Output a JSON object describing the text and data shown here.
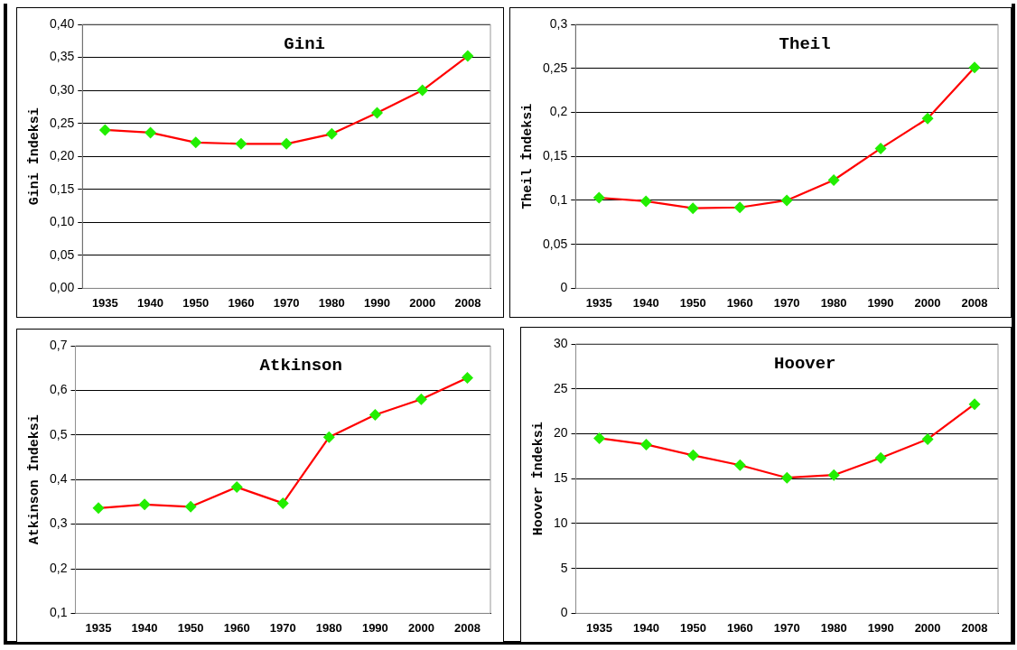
{
  "chart_data": [
    {
      "type": "line",
      "title": "Gini",
      "ylabel": "Gini İndeksi",
      "categories": [
        "1935",
        "1940",
        "1950",
        "1960",
        "1970",
        "1980",
        "1990",
        "2000",
        "2008"
      ],
      "series": [
        {
          "color": "#ff0000",
          "values": [
            0.24,
            0.236,
            0.221,
            0.219,
            0.219,
            0.234,
            0.266,
            0.3,
            0.352
          ]
        }
      ],
      "ylim": [
        0,
        0.4
      ],
      "yticks": [
        {
          "value": 0,
          "label": "0,00"
        },
        {
          "value": 0.05,
          "label": "0,05"
        },
        {
          "value": 0.1,
          "label": "0,10"
        },
        {
          "value": 0.15,
          "label": "0,15"
        },
        {
          "value": 0.2,
          "label": "0,20"
        },
        {
          "value": 0.25,
          "label": "0,25"
        },
        {
          "value": 0.3,
          "label": "0,30"
        },
        {
          "value": 0.35,
          "label": "0,35"
        },
        {
          "value": 0.4,
          "label": "0,40"
        }
      ],
      "grid": "y",
      "legend": false,
      "marker": "diamond",
      "line_style": "solid"
    },
    {
      "type": "line",
      "title": "Theil",
      "ylabel": "Theil İndeksi",
      "categories": [
        "1935",
        "1940",
        "1950",
        "1960",
        "1970",
        "1980",
        "1990",
        "2000",
        "2008"
      ],
      "series": [
        {
          "color": "#ff0000",
          "values": [
            0.103,
            0.099,
            0.091,
            0.092,
            0.1,
            0.123,
            0.159,
            0.193,
            0.251
          ]
        }
      ],
      "ylim": [
        0,
        0.3
      ],
      "yticks": [
        0,
        {
          "value": 0.05,
          "label": "0,05"
        },
        {
          "value": 0.1,
          "label": "0,1"
        },
        {
          "value": 0.15,
          "label": "0,15"
        },
        {
          "value": 0.2,
          "label": "0,2"
        },
        {
          "value": 0.25,
          "label": "0,25"
        },
        {
          "value": 0.3,
          "label": "0,3"
        }
      ],
      "grid": "y",
      "legend": false,
      "marker": "diamond",
      "line_style": "solid"
    },
    {
      "type": "line",
      "title": "Atkinson",
      "ylabel": "Atkinson İndeksi",
      "categories": [
        "1935",
        "1940",
        "1950",
        "1960",
        "1970",
        "1980",
        "1990",
        "2000",
        "2008"
      ],
      "series": [
        {
          "color": "#ff0000",
          "values": [
            0.336,
            0.344,
            0.339,
            0.383,
            0.347,
            0.495,
            0.545,
            0.58,
            0.628
          ]
        }
      ],
      "ylim": [
        0.1,
        0.7
      ],
      "yticks": [
        {
          "value": 0.1,
          "label": "0,1"
        },
        {
          "value": 0.2,
          "label": "0,2"
        },
        {
          "value": 0.3,
          "label": "0,3"
        },
        {
          "value": 0.4,
          "label": "0,4"
        },
        {
          "value": 0.5,
          "label": "0,5"
        },
        {
          "value": 0.6,
          "label": "0,6"
        },
        {
          "value": 0.7,
          "label": "0,7"
        }
      ],
      "grid": "y",
      "legend": false,
      "marker": "diamond",
      "line_style": "solid"
    },
    {
      "type": "line",
      "title": "Hoover",
      "ylabel": "Hoover İndeksi",
      "categories": [
        "1935",
        "1940",
        "1950",
        "1960",
        "1970",
        "1980",
        "1990",
        "2000",
        "2008"
      ],
      "series": [
        {
          "color": "#ff0000",
          "values": [
            19.5,
            18.8,
            17.6,
            16.5,
            15.1,
            15.4,
            17.3,
            19.4,
            23.3
          ]
        }
      ],
      "ylim": [
        0,
        30
      ],
      "yticks": [
        0,
        5,
        10,
        15,
        20,
        25,
        30
      ],
      "grid": "y",
      "legend": false,
      "marker": "diamond",
      "line_style": "solid"
    }
  ]
}
